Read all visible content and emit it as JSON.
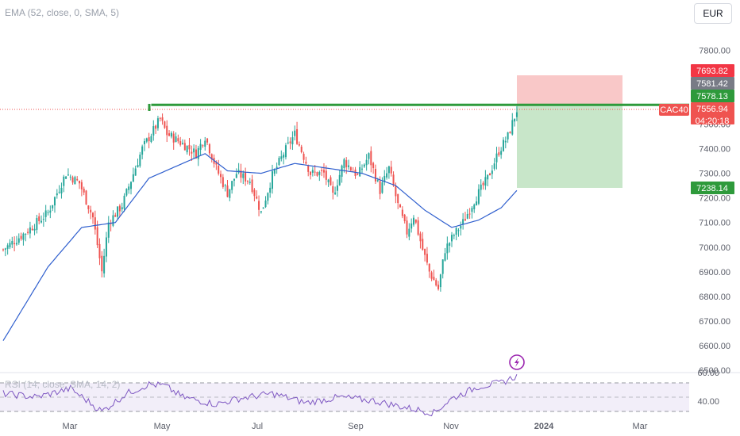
{
  "indicator_label": "EMA (52, close, 0, SMA, 5)",
  "rsi_label": "RSI (14, close, SMA, 14, 2)",
  "currency_button": "EUR",
  "symbol_tag": "CAC40",
  "countdown": "04:20:18",
  "colors": {
    "up": "#26a69a",
    "down": "#ef5350",
    "ema": "#2f5fce",
    "resistance": "#2e9a3b",
    "stop_zone": "#f9c8c8",
    "target_zone": "#c8e6c9",
    "rsi": "#7e57c2"
  },
  "price_tags": [
    {
      "label": "7693.82",
      "color": "#f23645"
    },
    {
      "label": "7581.42",
      "color": "#787b86"
    },
    {
      "label": "7578.13",
      "color": "#2e9a3b"
    },
    {
      "label": "7556.94",
      "color": "#ef5350"
    },
    {
      "label": "7238.14",
      "color": "#2e9a3b"
    }
  ],
  "chart_data": [
    {
      "type": "candlestick",
      "symbol": "CAC40",
      "x_ticks": [
        "Mar",
        "May",
        "Jul",
        "Sep",
        "Nov",
        "2024",
        "Mar"
      ],
      "y_ticks": [
        "6500.00",
        "6600.00",
        "6700.00",
        "6800.00",
        "6900.00",
        "7000.00",
        "7100.00",
        "7200.00",
        "7300.00",
        "7400.00",
        "7500.00",
        "7600.00",
        "7700.00",
        "7800.00"
      ],
      "ylim": [
        6500,
        7810
      ],
      "last_price": 7556.94,
      "path_waypoints": [
        [
          0,
          6990
        ],
        [
          10,
          7060
        ],
        [
          20,
          7140
        ],
        [
          28,
          7300
        ],
        [
          34,
          7260
        ],
        [
          40,
          7120
        ],
        [
          44,
          6900
        ],
        [
          47,
          7100
        ],
        [
          53,
          7170
        ],
        [
          62,
          7400
        ],
        [
          70,
          7520
        ],
        [
          73,
          7460
        ],
        [
          80,
          7420
        ],
        [
          86,
          7380
        ],
        [
          90,
          7450
        ],
        [
          95,
          7320
        ],
        [
          100,
          7220
        ],
        [
          104,
          7300
        ],
        [
          110,
          7270
        ],
        [
          115,
          7140
        ],
        [
          120,
          7290
        ],
        [
          125,
          7380
        ],
        [
          130,
          7460
        ],
        [
          137,
          7300
        ],
        [
          143,
          7300
        ],
        [
          147,
          7210
        ],
        [
          152,
          7350
        ],
        [
          158,
          7290
        ],
        [
          163,
          7370
        ],
        [
          168,
          7230
        ],
        [
          172,
          7320
        ],
        [
          176,
          7170
        ],
        [
          180,
          7060
        ],
        [
          183,
          7130
        ],
        [
          187,
          6990
        ],
        [
          190,
          6900
        ],
        [
          194,
          6830
        ],
        [
          197,
          6990
        ],
        [
          201,
          7050
        ],
        [
          205,
          7100
        ],
        [
          210,
          7190
        ],
        [
          216,
          7280
        ],
        [
          221,
          7390
        ],
        [
          225,
          7450
        ],
        [
          229,
          7557
        ]
      ],
      "ema_waypoints": [
        [
          0,
          6620
        ],
        [
          20,
          6920
        ],
        [
          35,
          7080
        ],
        [
          50,
          7100
        ],
        [
          65,
          7280
        ],
        [
          80,
          7340
        ],
        [
          90,
          7380
        ],
        [
          100,
          7310
        ],
        [
          115,
          7300
        ],
        [
          130,
          7340
        ],
        [
          145,
          7320
        ],
        [
          160,
          7300
        ],
        [
          175,
          7250
        ],
        [
          188,
          7150
        ],
        [
          200,
          7080
        ],
        [
          212,
          7110
        ],
        [
          222,
          7160
        ],
        [
          229,
          7230
        ]
      ],
      "resistance_level": 7578.13,
      "resistance_start_index": 66,
      "position": {
        "stop": 7693.82,
        "entry": 7578.13,
        "target": 7238.14
      },
      "horizontal_lines": [
        7581.42,
        7556.94
      ]
    },
    {
      "type": "line",
      "name": "RSI",
      "y_ticks": [
        "40.00",
        "60.00"
      ],
      "bands": [
        30,
        70
      ],
      "path_waypoints": [
        [
          0,
          55
        ],
        [
          15,
          50
        ],
        [
          30,
          62
        ],
        [
          44,
          30
        ],
        [
          55,
          55
        ],
        [
          65,
          68
        ],
        [
          72,
          66
        ],
        [
          80,
          50
        ],
        [
          95,
          40
        ],
        [
          105,
          48
        ],
        [
          120,
          55
        ],
        [
          135,
          42
        ],
        [
          150,
          50
        ],
        [
          165,
          45
        ],
        [
          180,
          35
        ],
        [
          192,
          28
        ],
        [
          200,
          48
        ],
        [
          212,
          65
        ],
        [
          222,
          70
        ],
        [
          229,
          80
        ]
      ]
    }
  ]
}
